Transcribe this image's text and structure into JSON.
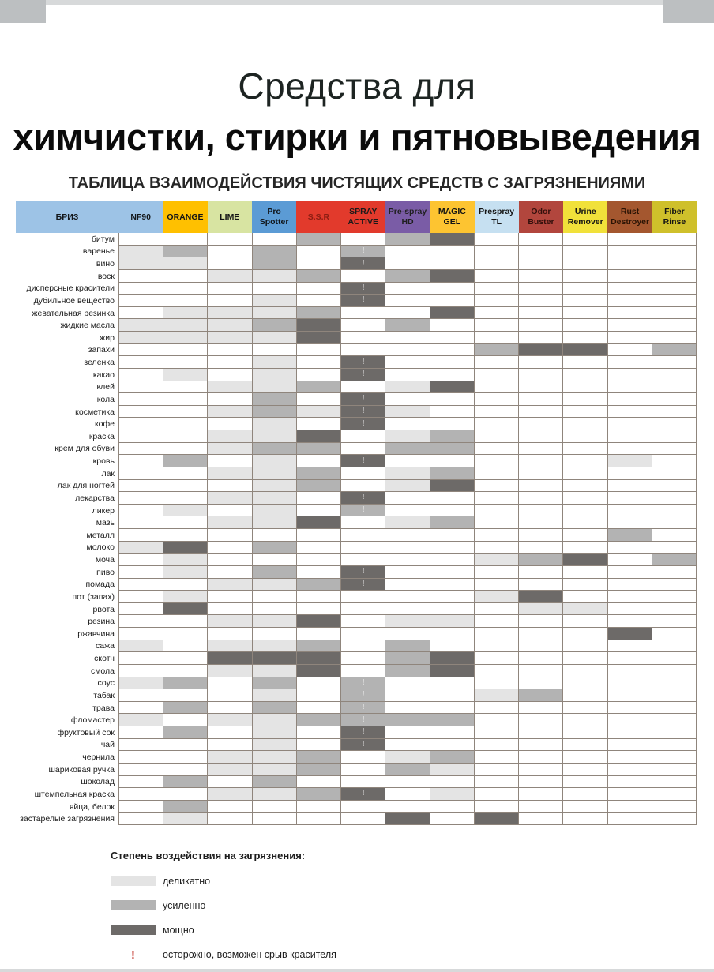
{
  "page": {
    "title_line1": "Средства для",
    "title_line2": "химчистки, стирки и пятновыведения",
    "subtitle": "ТАБЛИЦА ВЗАИМОДЕЙСТВИЯ ЧИСТЯЩИХ СРЕДСТВ С ЗАГРЯЗНЕНИЯМИ"
  },
  "legend": {
    "heading": "Степень воздействия на загрязнения:",
    "items": [
      {
        "code": "1",
        "label": "деликатно"
      },
      {
        "code": "2",
        "label": "усиленно"
      },
      {
        "code": "3",
        "label": "мощно"
      }
    ],
    "warning_symbol": "!",
    "warning_color": "#c0281e",
    "warning_label": "осторожно, возможен срыв красителя"
  },
  "chart_data": {
    "type": "heatmap",
    "title": "ТАБЛИЦА ВЗАИМОДЕЙСТВИЯ ЧИСТЯЩИХ СРЕДСТВ С ЗАГРЯЗНЕНИЯМИ",
    "corner_label": "БРИЗ",
    "corner_bg": "#9dc3e6",
    "corner_fg": "#14181c",
    "intensity_scale": {
      "1": "деликатно",
      "2": "усиленно",
      "3": "мощно",
      "!": "осторожно, возможен срыв красителя"
    },
    "cell_colors": {
      "1": "#e4e4e4",
      "2": "#b3b3b3",
      "3": "#6d6a68"
    },
    "columns": [
      {
        "label": "NF90",
        "bg": "#9dc3e6",
        "fg": "#14181c"
      },
      {
        "label": "ORANGE",
        "bg": "#ffc000",
        "fg": "#141414"
      },
      {
        "label": "LIME",
        "bg": "#d8e4a2",
        "fg": "#141414"
      },
      {
        "label": "Pro Spotter",
        "bg": "#5b9bd5",
        "fg": "#10151a"
      },
      {
        "label": "S.S.R",
        "bg": "#e23a2c",
        "fg": "#8c1d12"
      },
      {
        "label": "SPRAY ACTIVE",
        "bg": "#e23a2c",
        "fg": "#1a1a1a"
      },
      {
        "label": "Pre-spray HD",
        "bg": "#7a5ca6",
        "fg": "#1f1f1f"
      },
      {
        "label": "MAGIC GEL",
        "bg": "#fdc431",
        "fg": "#141414"
      },
      {
        "label": "Prespray TL",
        "bg": "#c6e0f1",
        "fg": "#141414"
      },
      {
        "label": "Odor Buster",
        "bg": "#b2463d",
        "fg": "#33100c"
      },
      {
        "label": "Urine Remover",
        "bg": "#f1e13a",
        "fg": "#141414"
      },
      {
        "label": "Rust Destroyer",
        "bg": "#a4572f",
        "fg": "#2b1405"
      },
      {
        "label": "Fiber Rinse",
        "bg": "#cfc02b",
        "fg": "#141414"
      }
    ],
    "rows": [
      "битум",
      "варенье",
      "вино",
      "воск",
      "дисперсные красители",
      "дубильное вещество",
      "жевательная резинка",
      "жидкие масла",
      "жир",
      "запахи",
      "зеленка",
      "какао",
      "клей",
      "кола",
      "косметика",
      "кофе",
      "краска",
      "крем для обуви",
      "кровь",
      "лак",
      "лак для ногтей",
      "лекарства",
      "ликер",
      "мазь",
      "металл",
      "молоко",
      "моча",
      "пиво",
      "помада",
      "пот (запах)",
      "рвота",
      "резина",
      "ржавчина",
      "сажа",
      "скотч",
      "смола",
      "соус",
      "табак",
      "трава",
      "фломастер",
      "фруктовый сок",
      "чай",
      "чернила",
      "шариковая ручка",
      "шоколад",
      "штемпельная краска",
      "яйца, белок",
      "застарелые загрязнения"
    ],
    "values": [
      [
        "",
        "",
        "",
        "",
        "2",
        "",
        "2",
        "3",
        "",
        "",
        "",
        "",
        ""
      ],
      [
        "1",
        "2",
        "",
        "2",
        "",
        "2!",
        "",
        "",
        "",
        "",
        "",
        "",
        ""
      ],
      [
        "1",
        "1",
        "",
        "2",
        "",
        "3!",
        "",
        "",
        "",
        "",
        "",
        "",
        ""
      ],
      [
        "",
        "",
        "1",
        "1",
        "2",
        "",
        "2",
        "3",
        "",
        "",
        "",
        "",
        ""
      ],
      [
        "",
        "",
        "",
        "",
        "",
        "3!",
        "",
        "",
        "",
        "",
        "",
        "",
        ""
      ],
      [
        "",
        "",
        "",
        "1",
        "",
        "3!",
        "",
        "",
        "",
        "",
        "",
        "",
        ""
      ],
      [
        "",
        "1",
        "1",
        "1",
        "2",
        "",
        "",
        "3",
        "",
        "",
        "",
        "",
        ""
      ],
      [
        "1",
        "1",
        "1",
        "2",
        "3",
        "",
        "2",
        "",
        "",
        "",
        "",
        "",
        ""
      ],
      [
        "1",
        "1",
        "1",
        "1",
        "3",
        "",
        "",
        "",
        "",
        "",
        "",
        "",
        ""
      ],
      [
        "",
        "",
        "",
        "",
        "",
        "",
        "",
        "",
        "2",
        "3",
        "3",
        "",
        "2"
      ],
      [
        "",
        "",
        "",
        "1",
        "",
        "3!",
        "",
        "",
        "",
        "",
        "",
        "",
        ""
      ],
      [
        "",
        "1",
        "",
        "1",
        "",
        "3!",
        "",
        "",
        "",
        "",
        "",
        "",
        ""
      ],
      [
        "",
        "",
        "1",
        "1",
        "2",
        "",
        "1",
        "3",
        "",
        "",
        "",
        "",
        ""
      ],
      [
        "",
        "",
        "",
        "2",
        "",
        "3!",
        "",
        "",
        "",
        "",
        "",
        "",
        ""
      ],
      [
        "",
        "",
        "1",
        "2",
        "1",
        "3!",
        "1",
        "",
        "",
        "",
        "",
        "",
        ""
      ],
      [
        "",
        "",
        "",
        "1",
        "",
        "3!",
        "",
        "",
        "",
        "",
        "",
        "",
        ""
      ],
      [
        "",
        "",
        "1",
        "1",
        "3",
        "",
        "1",
        "2",
        "",
        "",
        "",
        "",
        ""
      ],
      [
        "",
        "",
        "1",
        "2",
        "2",
        "",
        "2",
        "2",
        "",
        "",
        "",
        "",
        ""
      ],
      [
        "",
        "2",
        "",
        "1",
        "",
        "3!",
        "",
        "",
        "",
        "",
        "",
        "1",
        ""
      ],
      [
        "",
        "",
        "1",
        "1",
        "2",
        "",
        "1",
        "2",
        "",
        "",
        "",
        "",
        ""
      ],
      [
        "",
        "",
        "",
        "1",
        "2",
        "",
        "1",
        "3",
        "",
        "",
        "",
        "",
        ""
      ],
      [
        "",
        "",
        "1",
        "1",
        "",
        "3!",
        "",
        "",
        "",
        "",
        "",
        "",
        ""
      ],
      [
        "",
        "1",
        "",
        "1",
        "",
        "2!",
        "",
        "",
        "",
        "",
        "",
        "",
        ""
      ],
      [
        "",
        "",
        "1",
        "1",
        "3",
        "",
        "1",
        "2",
        "",
        "",
        "",
        "",
        ""
      ],
      [
        "",
        "",
        "",
        "",
        "",
        "",
        "",
        "",
        "",
        "",
        "",
        "2",
        ""
      ],
      [
        "1",
        "3",
        "",
        "2",
        "",
        "",
        "",
        "",
        "",
        "",
        "",
        "",
        ""
      ],
      [
        "",
        "1",
        "",
        "",
        "",
        "",
        "",
        "",
        "1",
        "2",
        "3",
        "",
        "2"
      ],
      [
        "",
        "1",
        "",
        "2",
        "",
        "3!",
        "",
        "",
        "",
        "",
        "",
        "",
        ""
      ],
      [
        "",
        "",
        "1",
        "1",
        "2",
        "3!",
        "",
        "",
        "",
        "",
        "",
        "",
        ""
      ],
      [
        "",
        "1",
        "",
        "",
        "",
        "",
        "",
        "",
        "1",
        "3",
        "",
        "",
        ""
      ],
      [
        "",
        "3",
        "",
        "",
        "",
        "",
        "",
        "",
        "",
        "1",
        "1",
        "",
        ""
      ],
      [
        "",
        "",
        "1",
        "1",
        "3",
        "",
        "1",
        "1",
        "",
        "",
        "",
        "",
        ""
      ],
      [
        "",
        "",
        "",
        "",
        "",
        "",
        "",
        "",
        "",
        "",
        "",
        "3",
        ""
      ],
      [
        "1",
        "",
        "1",
        "1",
        "2",
        "",
        "2",
        "",
        "",
        "",
        "",
        "",
        ""
      ],
      [
        "",
        "",
        "3",
        "3",
        "3",
        "",
        "2",
        "3",
        "",
        "",
        "",
        "",
        ""
      ],
      [
        "",
        "",
        "1",
        "1",
        "3",
        "",
        "2",
        "3",
        "",
        "",
        "",
        "",
        ""
      ],
      [
        "1",
        "2",
        "",
        "2",
        "",
        "2!",
        "",
        "",
        "",
        "",
        "",
        "",
        ""
      ],
      [
        "",
        "",
        "",
        "1",
        "",
        "2!",
        "",
        "",
        "1",
        "2",
        "",
        "",
        ""
      ],
      [
        "",
        "2",
        "",
        "2",
        "",
        "2!",
        "",
        "",
        "",
        "",
        "",
        "",
        ""
      ],
      [
        "1",
        "",
        "1",
        "1",
        "2",
        "2!",
        "2",
        "2",
        "",
        "",
        "",
        "",
        ""
      ],
      [
        "",
        "2",
        "",
        "1",
        "",
        "3!",
        "",
        "",
        "",
        "",
        "",
        "",
        ""
      ],
      [
        "",
        "",
        "",
        "1",
        "",
        "3!",
        "",
        "",
        "",
        "",
        "",
        "",
        ""
      ],
      [
        "",
        "",
        "1",
        "1",
        "2",
        "",
        "1",
        "2",
        "",
        "",
        "",
        "",
        ""
      ],
      [
        "",
        "",
        "1",
        "1",
        "2",
        "",
        "2",
        "1",
        "",
        "",
        "",
        "",
        ""
      ],
      [
        "",
        "2",
        "",
        "2",
        "",
        "",
        "",
        "",
        "",
        "",
        "",
        "",
        ""
      ],
      [
        "",
        "",
        "1",
        "1",
        "2",
        "3!",
        "",
        "1",
        "",
        "",
        "",
        "",
        ""
      ],
      [
        "",
        "2",
        "",
        "",
        "",
        "",
        "",
        "",
        "",
        "",
        "",
        "",
        ""
      ],
      [
        "",
        "1",
        "",
        "",
        "",
        "",
        "3",
        "",
        "3",
        "",
        "",
        "",
        ""
      ]
    ]
  }
}
